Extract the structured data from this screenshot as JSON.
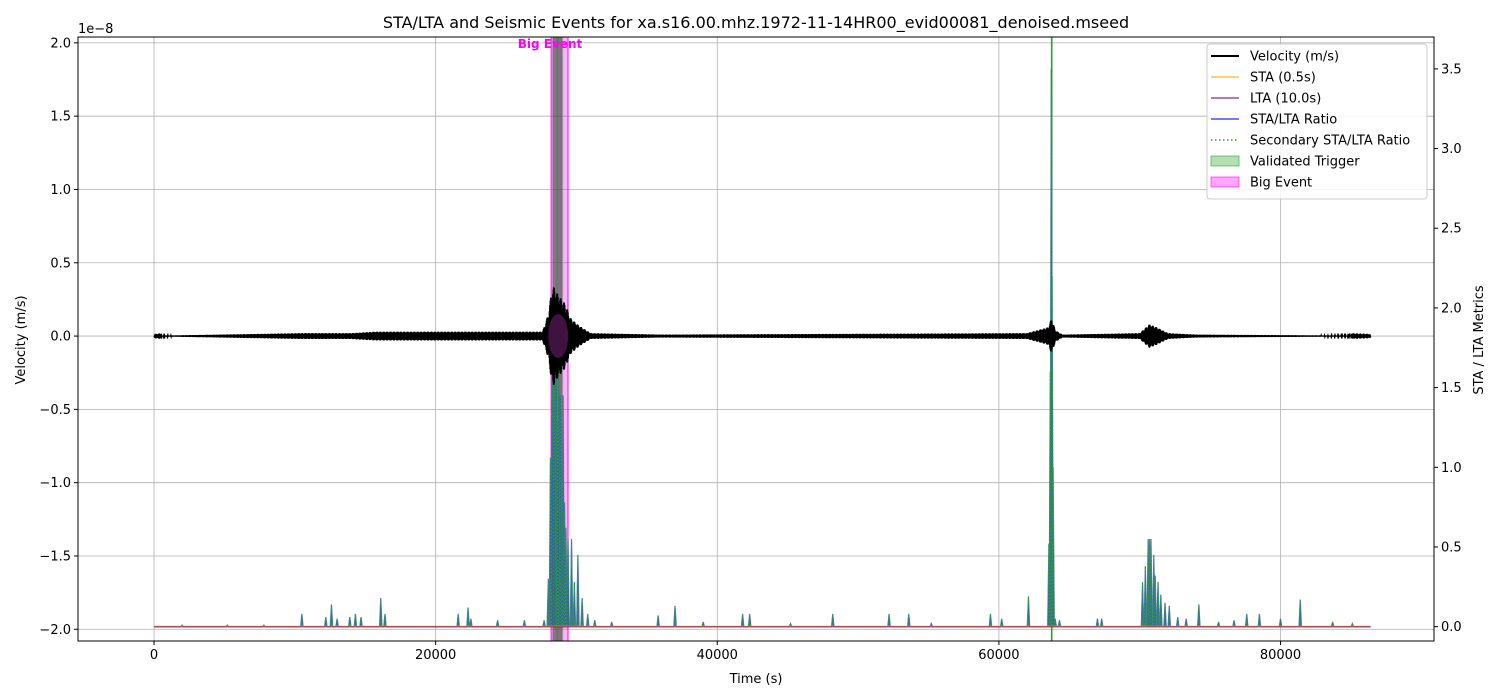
{
  "chart_data": {
    "type": "line",
    "title": "STA/LTA and Seismic Events for xa.s16.00.mhz.1972-11-14HR00_evid00081_denoised.mseed",
    "xlabel": "Time (s)",
    "ylabel_left": "Velocity (m/s)",
    "ylabel_right": "STA / LTA Metrics",
    "left_axis_offset_label": "1e−8",
    "xlim": [
      -5400,
      90900
    ],
    "ylim_left": [
      -2.08,
      2.04
    ],
    "ylim_left_scale": "1e-8",
    "ylim_right": [
      -0.09,
      3.7
    ],
    "xticks": [
      0,
      20000,
      40000,
      60000,
      80000
    ],
    "xtick_labels": [
      "0",
      "20000",
      "40000",
      "60000",
      "80000"
    ],
    "yticks_left": [
      -2.0,
      -1.5,
      -1.0,
      -0.5,
      0.0,
      0.5,
      1.0,
      1.5,
      2.0
    ],
    "ytick_labels_left": [
      "−2.0",
      "−1.5",
      "−1.0",
      "−0.5",
      "0.0",
      "0.5",
      "1.0",
      "1.5",
      "2.0"
    ],
    "yticks_right": [
      0.0,
      0.5,
      1.0,
      1.5,
      2.0,
      2.5,
      3.0,
      3.5
    ],
    "ytick_labels_right": [
      "0.0",
      "0.5",
      "1.0",
      "1.5",
      "2.0",
      "2.5",
      "3.0",
      "3.5"
    ],
    "grid": true,
    "legend_position": "top-right",
    "time_range": [
      0,
      86400
    ],
    "series": [
      {
        "name": "Velocity (m/s)",
        "color": "#000000",
        "style": "solid",
        "axis": "left"
      },
      {
        "name": "STA (0.5s)",
        "color": "#ffa500",
        "style": "solid",
        "axis": "right"
      },
      {
        "name": "LTA (10.0s)",
        "color": "#800080",
        "style": "solid",
        "axis": "right"
      },
      {
        "name": "STA/LTA Ratio",
        "color": "#0000ff",
        "style": "solid",
        "axis": "right"
      },
      {
        "name": "Secondary STA/LTA Ratio",
        "color": "#2ca02c",
        "style": "dotted",
        "axis": "right"
      }
    ],
    "shaded_regions": [
      {
        "name": "Validated Trigger",
        "color": "#2ca02c",
        "alpha": 0.35
      },
      {
        "name": "Big Event",
        "color": "#ff00ff",
        "alpha": 0.3
      }
    ],
    "legend": [
      {
        "label": "Velocity (m/s)",
        "kind": "line",
        "color": "#000000"
      },
      {
        "label": "STA (0.5s)",
        "kind": "line",
        "color": "#ffa500"
      },
      {
        "label": "LTA (10.0s)",
        "kind": "line",
        "color": "#800080"
      },
      {
        "label": "STA/LTA Ratio",
        "kind": "line",
        "color": "#0000ff"
      },
      {
        "label": "Secondary STA/LTA Ratio",
        "kind": "dotted",
        "color": "#2ca02c"
      },
      {
        "label": "Validated Trigger",
        "kind": "patch",
        "color": "#2ca02c"
      },
      {
        "label": "Big Event",
        "kind": "patch",
        "color": "#ff00ff"
      }
    ],
    "big_event": {
      "label": "Big Event",
      "start": 28200,
      "end": 29400
    },
    "validated_triggers": [
      {
        "start": 28300,
        "end": 28400
      },
      {
        "start": 28500,
        "end": 28550
      },
      {
        "start": 28600,
        "end": 28650
      },
      {
        "start": 28700,
        "end": 28780
      },
      {
        "start": 28850,
        "end": 28900
      },
      {
        "start": 28950,
        "end": 29000
      }
    ],
    "detection_lines": [
      {
        "time": 63750,
        "color": "#2ca02c"
      }
    ],
    "velocity_envelope": [
      {
        "t": 0,
        "a": 0.002
      },
      {
        "t": 10500,
        "a": 0.02
      },
      {
        "t": 12500,
        "a": 0.02
      },
      {
        "t": 14000,
        "a": 0.02
      },
      {
        "t": 15700,
        "a": 0.03
      },
      {
        "t": 27600,
        "a": 0.03
      },
      {
        "t": 28000,
        "a": 0.15
      },
      {
        "t": 28300,
        "a": 0.35
      },
      {
        "t": 28700,
        "a": 0.28
      },
      {
        "t": 29200,
        "a": 0.22
      },
      {
        "t": 29600,
        "a": 0.12
      },
      {
        "t": 30200,
        "a": 0.07
      },
      {
        "t": 31000,
        "a": 0.02
      },
      {
        "t": 36000,
        "a": 0.01
      },
      {
        "t": 62000,
        "a": 0.02
      },
      {
        "t": 63500,
        "a": 0.06
      },
      {
        "t": 63750,
        "a": 0.12
      },
      {
        "t": 64000,
        "a": 0.04
      },
      {
        "t": 64500,
        "a": 0.01
      },
      {
        "t": 70000,
        "a": 0.02
      },
      {
        "t": 70700,
        "a": 0.08
      },
      {
        "t": 71200,
        "a": 0.06
      },
      {
        "t": 72000,
        "a": 0.02
      },
      {
        "t": 74000,
        "a": 0.01
      },
      {
        "t": 86400,
        "a": 0.002
      }
    ],
    "sta_lta_spikes": [
      [
        2000,
        0.01
      ],
      [
        5200,
        0.01
      ],
      [
        7800,
        0.01
      ],
      [
        10500,
        0.08
      ],
      [
        12200,
        0.06
      ],
      [
        12600,
        0.14
      ],
      [
        13000,
        0.05
      ],
      [
        13900,
        0.06
      ],
      [
        14300,
        0.08
      ],
      [
        14700,
        0.06
      ],
      [
        16100,
        0.18
      ],
      [
        16400,
        0.08
      ],
      [
        21600,
        0.08
      ],
      [
        22300,
        0.12
      ],
      [
        22500,
        0.05
      ],
      [
        24400,
        0.04
      ],
      [
        26300,
        0.04
      ],
      [
        27700,
        0.04
      ],
      [
        28000,
        0.3
      ],
      [
        28150,
        1.06
      ],
      [
        28300,
        1.95
      ],
      [
        28450,
        1.78
      ],
      [
        28550,
        1.95
      ],
      [
        28650,
        1.28
      ],
      [
        28750,
        1.68
      ],
      [
        28850,
        1.45
      ],
      [
        28950,
        1.0
      ],
      [
        29050,
        1.45
      ],
      [
        29150,
        0.78
      ],
      [
        29250,
        0.62
      ],
      [
        29400,
        0.55
      ],
      [
        29650,
        0.55
      ],
      [
        29850,
        0.28
      ],
      [
        30100,
        0.45
      ],
      [
        30400,
        0.18
      ],
      [
        30800,
        0.08
      ],
      [
        31300,
        0.04
      ],
      [
        32500,
        0.03
      ],
      [
        35800,
        0.07
      ],
      [
        37000,
        0.13
      ],
      [
        39000,
        0.03
      ],
      [
        41800,
        0.08
      ],
      [
        42300,
        0.08
      ],
      [
        45200,
        0.02
      ],
      [
        48200,
        0.08
      ],
      [
        52200,
        0.08
      ],
      [
        53600,
        0.08
      ],
      [
        55200,
        0.02
      ],
      [
        59400,
        0.08
      ],
      [
        60200,
        0.05
      ],
      [
        62100,
        0.19
      ],
      [
        63550,
        0.52
      ],
      [
        63650,
        1.6
      ],
      [
        63720,
        3.5
      ],
      [
        63780,
        2.2
      ],
      [
        63850,
        1.0
      ],
      [
        64000,
        0.05
      ],
      [
        64300,
        0.04
      ],
      [
        67000,
        0.05
      ],
      [
        67300,
        0.05
      ],
      [
        70200,
        0.28
      ],
      [
        70400,
        0.38
      ],
      [
        70600,
        0.55
      ],
      [
        70700,
        0.55
      ],
      [
        70800,
        0.55
      ],
      [
        71000,
        0.45
      ],
      [
        71100,
        0.32
      ],
      [
        71300,
        0.28
      ],
      [
        71500,
        0.2
      ],
      [
        71800,
        0.15
      ],
      [
        72100,
        0.13
      ],
      [
        72700,
        0.06
      ],
      [
        73300,
        0.05
      ],
      [
        74200,
        0.14
      ],
      [
        75600,
        0.03
      ],
      [
        76700,
        0.04
      ],
      [
        77600,
        0.08
      ],
      [
        78500,
        0.08
      ],
      [
        80000,
        0.05
      ],
      [
        81400,
        0.17
      ],
      [
        83700,
        0.03
      ],
      [
        85100,
        0.02
      ]
    ]
  }
}
